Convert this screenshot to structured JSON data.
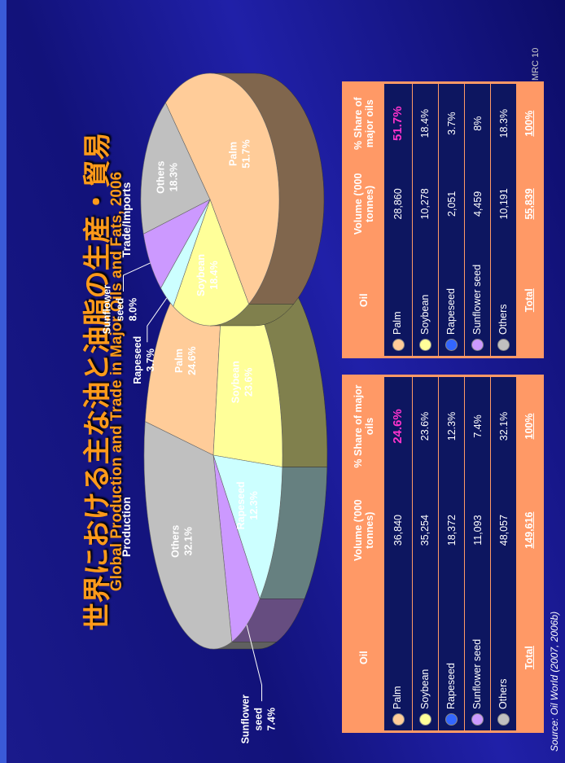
{
  "title": "世界における主な油と油脂の生産・貿易",
  "subtitle": "Global Production  and Trade in Major Oils and Fats, 2006",
  "source": "Source: Oil World (2007, 2006b)",
  "footer": "MRC 10",
  "chart_data": [
    {
      "type": "pie",
      "title": "Production",
      "categories": [
        "Palm",
        "Soybean",
        "Rapeseed",
        "Sunflower seed",
        "Others"
      ],
      "values": [
        24.6,
        23.6,
        12.3,
        7.4,
        32.1
      ],
      "value_labels": [
        "24.6%",
        "23.6%",
        "12.3%",
        "7.4%",
        "32.1%"
      ],
      "colors": [
        "#ffcc99",
        "#ffff99",
        "#ccffff",
        "#cc99ff",
        "#c0c0c0"
      ]
    },
    {
      "type": "pie",
      "title": "Trade/Imports",
      "categories": [
        "Palm",
        "Soybean",
        "Rapeseed",
        "Sunflower seed",
        "Others"
      ],
      "values": [
        51.7,
        18.4,
        3.7,
        8.0,
        18.3
      ],
      "value_labels": [
        "51.7%",
        "18.4%",
        "3.7%",
        "8.0%",
        "18.3%"
      ],
      "colors": [
        "#ffcc99",
        "#ffff99",
        "#ccffff",
        "#cc99ff",
        "#c0c0c0"
      ]
    }
  ],
  "tables": [
    {
      "header": [
        "Oil",
        "Volume ('000 tonnes)",
        "% Share of major oils"
      ],
      "rows": [
        [
          "Palm",
          "36,840",
          "24.6%"
        ],
        [
          "Soybean",
          "35,254",
          "23.6%"
        ],
        [
          "Rapeseed",
          "18,372",
          "12.3%"
        ],
        [
          "Sunflower seed",
          "11,093",
          "7.4%"
        ],
        [
          "Others",
          "48,057",
          "32.1%"
        ]
      ],
      "total": [
        "Total",
        "149,616",
        "100%"
      ],
      "bullet_colors": [
        "#ffcc99",
        "#ffff99",
        "#3366ff",
        "#cc99ff",
        "#c0c0c0"
      ]
    },
    {
      "header": [
        "Oil",
        "Volume ('000 tonnes)",
        "% Share of major oils"
      ],
      "rows": [
        [
          "Palm",
          "28,860",
          "51.7%"
        ],
        [
          "Soybean",
          "10,278",
          "18.4%"
        ],
        [
          "Rapeseed",
          "2,051",
          "3.7%"
        ],
        [
          "Sunflower seed",
          "4,459",
          "8%"
        ],
        [
          "Others",
          "10,191",
          "18.3%"
        ]
      ],
      "total": [
        "Total",
        "55,839",
        "100%"
      ],
      "bullet_colors": [
        "#ffcc99",
        "#ffff99",
        "#3366ff",
        "#cc99ff",
        "#c0c0c0"
      ]
    }
  ]
}
